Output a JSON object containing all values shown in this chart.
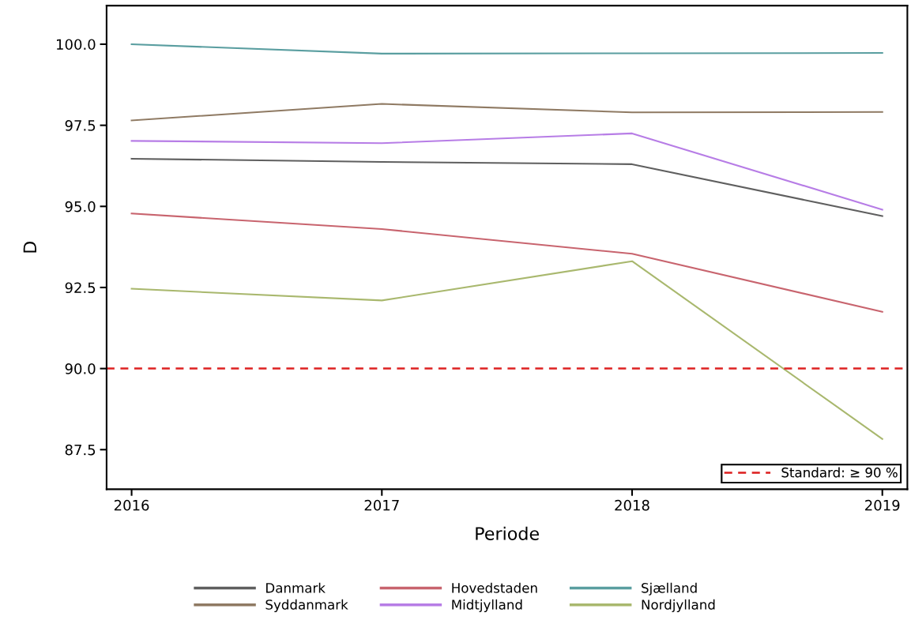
{
  "chart_data": {
    "type": "line",
    "xlabel": "Periode",
    "ylabel": "D",
    "x": [
      2016,
      2017,
      2018,
      2019
    ],
    "xlim": [
      2015.9,
      2019.1
    ],
    "xticks": [
      2016,
      2017,
      2018,
      2019
    ],
    "ylim": [
      86.28,
      101.19
    ],
    "yticks": [
      {
        "value": 87.5,
        "label": "87.5"
      },
      {
        "value": 90,
        "label": "90.0"
      },
      {
        "value": 92.5,
        "label": "92.5"
      },
      {
        "value": 95,
        "label": "95.0"
      },
      {
        "value": 97.5,
        "label": "97.5"
      },
      {
        "value": 100,
        "label": "100.0"
      }
    ],
    "series": [
      {
        "name": "Danmark",
        "color": "#5f5f5f",
        "values": [
          96.47,
          96.37,
          96.3,
          94.7
        ]
      },
      {
        "name": "Hovedstaden",
        "color": "#c8646e",
        "values": [
          94.78,
          94.3,
          93.54,
          91.75
        ]
      },
      {
        "name": "Sjælland",
        "color": "#5a9ea0",
        "values": [
          100.0,
          99.71,
          99.72,
          99.73
        ]
      },
      {
        "name": "Syddanmark",
        "color": "#8f7a63",
        "values": [
          97.65,
          98.16,
          97.9,
          97.91
        ]
      },
      {
        "name": "Midtjylland",
        "color": "#b77de6",
        "values": [
          97.02,
          96.95,
          97.25,
          94.9
        ]
      },
      {
        "name": "Nordjylland",
        "color": "#a9b86e",
        "values": [
          92.46,
          92.1,
          93.31,
          87.83
        ]
      }
    ],
    "ref_lines": [
      {
        "axis": "y",
        "value": 90,
        "label": "Standard: ≥ 90 %",
        "color": "#dd2222",
        "line_style": "dashed"
      }
    ],
    "legend": "bottom",
    "grid": false,
    "marker": "none",
    "line_style": "solid"
  }
}
